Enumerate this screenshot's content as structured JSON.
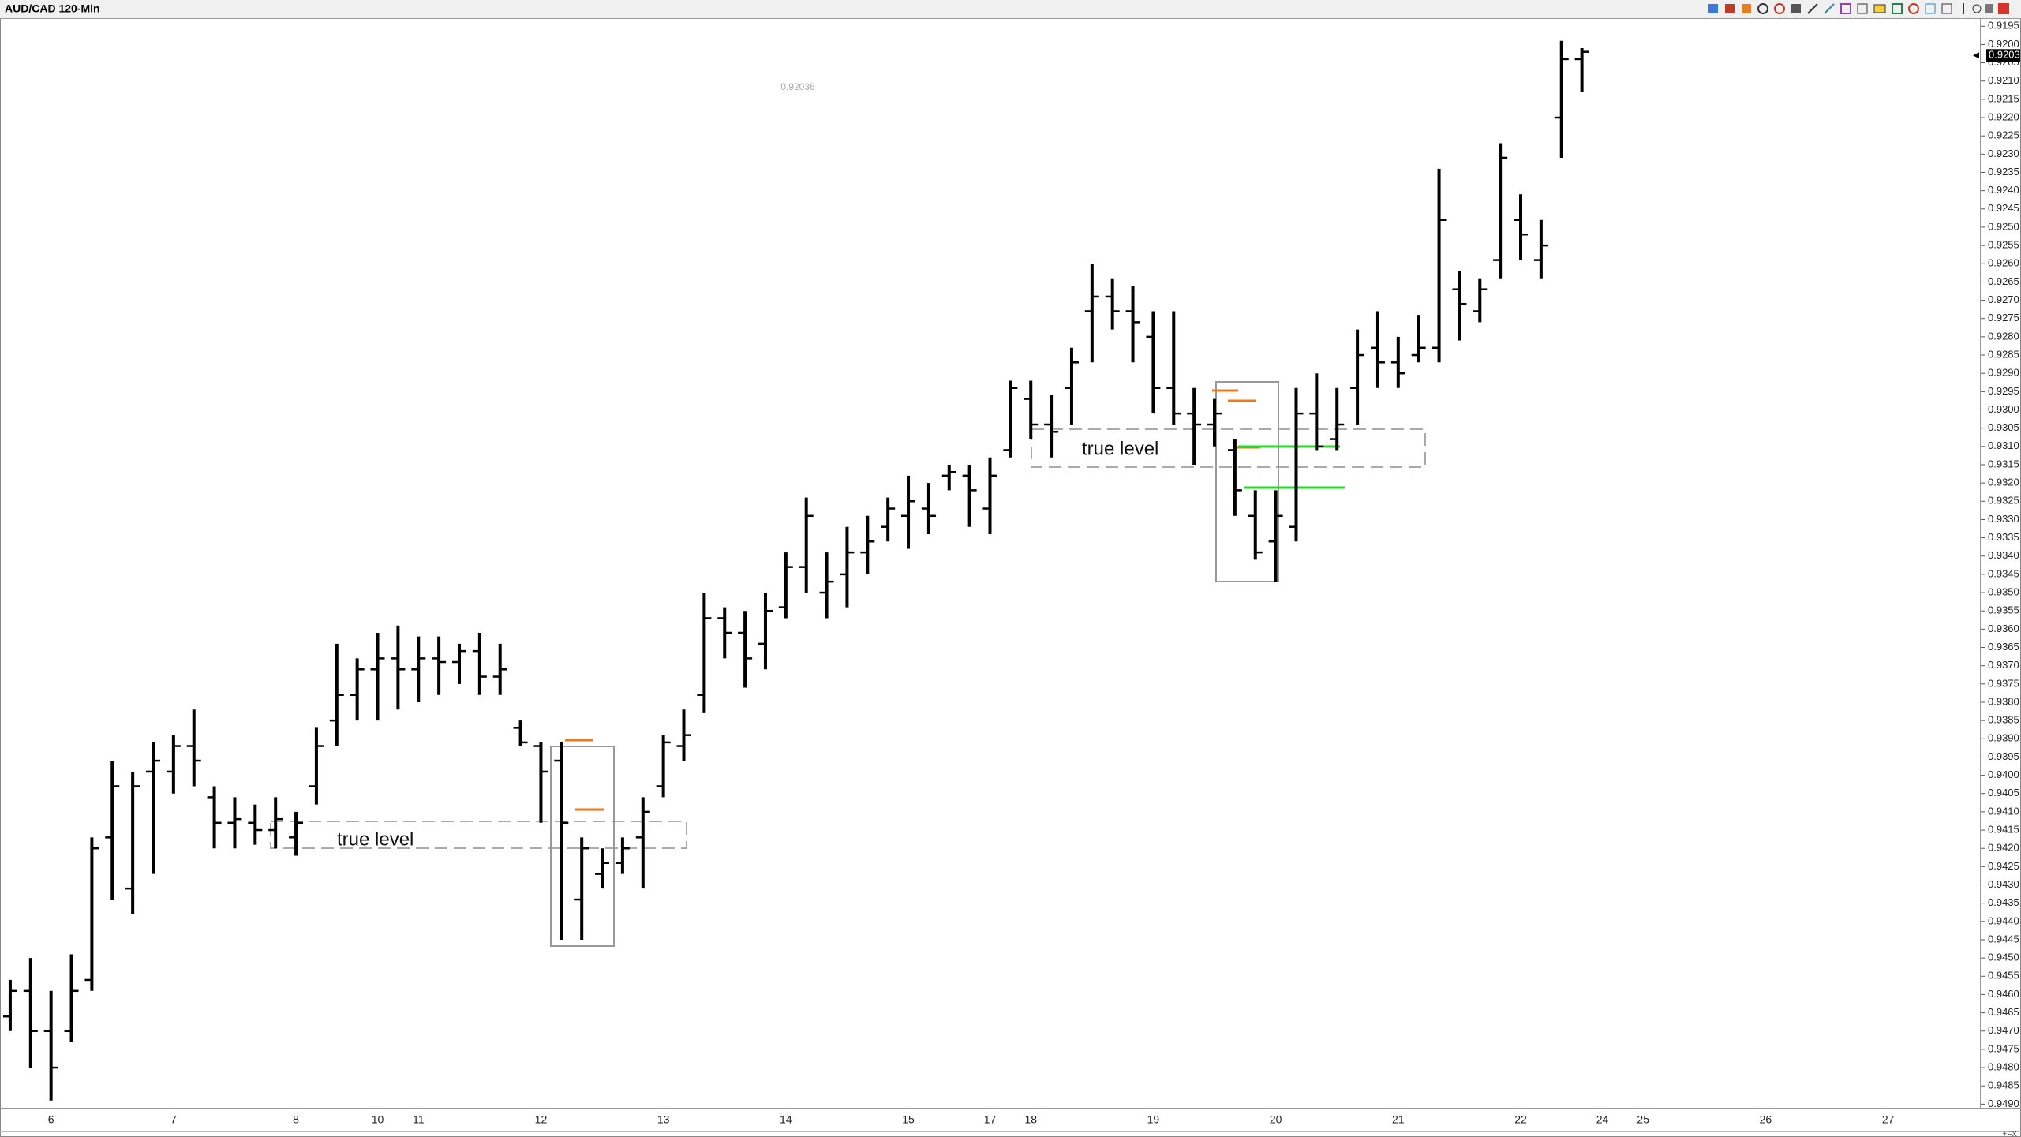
{
  "chart_data": {
    "type": "ohlc",
    "title": "AUD/CAD 120-Min",
    "inverted": true,
    "grid": false,
    "color": "#000000",
    "ylim": [
      0.9193,
      0.9491
    ],
    "yticks": [
      0.9195,
      {
        "value": 0.92,
        "label": "0.9200"
      },
      0.9205,
      {
        "value": 0.921,
        "label": "0.9210"
      },
      0.9215,
      {
        "value": 0.922,
        "label": "0.9220"
      },
      0.9225,
      {
        "value": 0.923,
        "label": "0.9230"
      },
      0.9235,
      {
        "value": 0.924,
        "label": "0.9240"
      },
      0.9245,
      {
        "value": 0.925,
        "label": "0.9250"
      },
      0.9255,
      {
        "value": 0.926,
        "label": "0.9260"
      },
      0.9265,
      {
        "value": 0.927,
        "label": "0.9270"
      },
      0.9275,
      {
        "value": 0.928,
        "label": "0.9280"
      },
      0.9285,
      {
        "value": 0.929,
        "label": "0.9290"
      },
      0.9295,
      {
        "value": 0.93,
        "label": "0.9300"
      },
      0.9305,
      {
        "value": 0.931,
        "label": "0.9310"
      },
      0.9315,
      {
        "value": 0.932,
        "label": "0.9320"
      },
      0.9325,
      {
        "value": 0.933,
        "label": "0.9330"
      },
      0.9335,
      {
        "value": 0.934,
        "label": "0.9340"
      },
      0.9345,
      {
        "value": 0.935,
        "label": "0.9350"
      },
      0.9355,
      {
        "value": 0.936,
        "label": "0.9360"
      },
      0.9365,
      {
        "value": 0.937,
        "label": "0.9370"
      },
      0.9375,
      {
        "value": 0.938,
        "label": "0.9380"
      },
      0.9385,
      {
        "value": 0.939,
        "label": "0.9390"
      },
      0.9395,
      {
        "value": 0.94,
        "label": "0.9400"
      },
      0.9405,
      {
        "value": 0.941,
        "label": "0.9410"
      },
      0.9415,
      {
        "value": 0.942,
        "label": "0.9420"
      },
      0.9425,
      {
        "value": 0.943,
        "label": "0.9430"
      },
      0.9435,
      {
        "value": 0.944,
        "label": "0.9440"
      },
      0.9445,
      {
        "value": 0.945,
        "label": "0.9450"
      },
      0.9455,
      {
        "value": 0.946,
        "label": "0.9460"
      },
      0.9465,
      {
        "value": 0.947,
        "label": "0.9470"
      },
      0.9475,
      {
        "value": 0.948,
        "label": "0.9480"
      },
      0.9485,
      {
        "value": 0.949,
        "label": "0.9490"
      }
    ],
    "categories": [
      null,
      null,
      "6",
      null,
      null,
      null,
      null,
      null,
      "7",
      null,
      null,
      null,
      null,
      null,
      "8",
      null,
      null,
      null,
      "10",
      null,
      "11",
      null,
      null,
      null,
      null,
      null,
      "12",
      null,
      null,
      null,
      null,
      null,
      "13",
      null,
      null,
      null,
      null,
      null,
      "14",
      null,
      null,
      null,
      null,
      null,
      "15",
      null,
      null,
      null,
      "17",
      null,
      "18",
      null,
      null,
      null,
      null,
      null,
      "19",
      null,
      null,
      null,
      null,
      null,
      "20",
      null,
      null,
      null,
      null,
      null,
      "21",
      null,
      null,
      null,
      null,
      null,
      "22",
      null,
      null,
      null,
      "24",
      null,
      "25",
      null,
      null,
      null,
      null,
      null,
      "26",
      null,
      null,
      null,
      null,
      null,
      "27",
      null,
      null,
      null,
      null
    ],
    "ohlc": [
      [
        0.9466,
        0.947,
        0.9456,
        0.9459
      ],
      [
        0.9459,
        0.948,
        0.945,
        0.947
      ],
      [
        0.947,
        0.9489,
        0.9459,
        0.948
      ],
      [
        0.947,
        0.9473,
        0.9449,
        0.9459
      ],
      [
        0.9456,
        0.9459,
        0.9417,
        0.942
      ],
      [
        0.9417,
        0.9434,
        0.9396,
        0.9403
      ],
      [
        0.9431,
        0.9438,
        0.9399,
        0.9403
      ],
      [
        0.9399,
        0.9427,
        0.9391,
        0.9396
      ],
      [
        0.9399,
        0.9405,
        0.9389,
        0.9392
      ],
      [
        0.9392,
        0.9403,
        0.9382,
        0.9396
      ],
      [
        0.9406,
        0.942,
        0.9403,
        0.9413
      ],
      [
        0.9413,
        0.942,
        0.9406,
        0.9412
      ],
      [
        0.9413,
        0.9419,
        0.9408,
        0.9415
      ],
      [
        0.9415,
        0.942,
        0.9406,
        0.9412
      ],
      [
        0.9417,
        0.9422,
        0.941,
        0.9413
      ],
      [
        0.9403,
        0.9408,
        0.9387,
        0.9392
      ],
      [
        0.9385,
        0.9392,
        0.9364,
        0.9378
      ],
      [
        0.9378,
        0.9385,
        0.9368,
        0.9371
      ],
      [
        0.9371,
        0.9385,
        0.9361,
        0.9368
      ],
      [
        0.9368,
        0.9382,
        0.9359,
        0.9371
      ],
      [
        0.9371,
        0.938,
        0.9362,
        0.9368
      ],
      [
        0.9368,
        0.9378,
        0.9362,
        0.9369
      ],
      [
        0.9369,
        0.9375,
        0.9364,
        0.9366
      ],
      [
        0.9366,
        0.9378,
        0.9361,
        0.9373
      ],
      [
        0.9373,
        0.9378,
        0.9364,
        0.9371
      ],
      [
        0.9387,
        0.9392,
        0.9385,
        0.9391
      ],
      [
        0.9392,
        0.9413,
        0.9391,
        0.9399
      ],
      [
        0.9396,
        0.9445,
        0.9391,
        0.9413
      ],
      [
        0.9434,
        0.9445,
        0.9417,
        0.942
      ],
      [
        0.9427,
        0.9431,
        0.942,
        0.9424
      ],
      [
        0.9424,
        0.9427,
        0.9417,
        0.942
      ],
      [
        0.9417,
        0.9431,
        0.9406,
        0.941
      ],
      [
        0.9403,
        0.9406,
        0.9389,
        0.9391
      ],
      [
        0.9392,
        0.9396,
        0.9382,
        0.9389
      ],
      [
        0.9378,
        0.9383,
        0.935,
        0.9357
      ],
      [
        0.9357,
        0.9368,
        0.9354,
        0.9361
      ],
      [
        0.9361,
        0.9376,
        0.9355,
        0.9368
      ],
      [
        0.9364,
        0.9371,
        0.935,
        0.9355
      ],
      [
        0.9354,
        0.9357,
        0.9339,
        0.9343
      ],
      [
        0.9343,
        0.935,
        0.9324,
        0.9329
      ],
      [
        0.935,
        0.9357,
        0.9339,
        0.9347
      ],
      [
        0.9345,
        0.9354,
        0.9332,
        0.9339
      ],
      [
        0.9339,
        0.9345,
        0.9329,
        0.9336
      ],
      [
        0.9332,
        0.9336,
        0.9324,
        0.9327
      ],
      [
        0.9329,
        0.9338,
        0.9318,
        0.9325
      ],
      [
        0.9327,
        0.9334,
        0.932,
        0.9329
      ],
      [
        0.9318,
        0.9322,
        0.9315,
        0.9317
      ],
      [
        0.9318,
        0.9332,
        0.9315,
        0.9322
      ],
      [
        0.9327,
        0.9334,
        0.9313,
        0.9318
      ],
      [
        0.9311,
        0.9313,
        0.9292,
        0.9294
      ],
      [
        0.9297,
        0.9308,
        0.9292,
        0.9304
      ],
      [
        0.9304,
        0.9313,
        0.9296,
        0.9306
      ],
      [
        0.9294,
        0.9304,
        0.9283,
        0.9287
      ],
      [
        0.9273,
        0.9287,
        0.926,
        0.9269
      ],
      [
        0.9269,
        0.9278,
        0.9264,
        0.9273
      ],
      [
        0.9273,
        0.9287,
        0.9266,
        0.9276
      ],
      [
        0.928,
        0.9301,
        0.9273,
        0.9294
      ],
      [
        0.9294,
        0.9304,
        0.9273,
        0.9301
      ],
      [
        0.9301,
        0.9315,
        0.9294,
        0.9304
      ],
      [
        0.9304,
        0.931,
        0.9297,
        0.9301
      ],
      [
        0.9311,
        0.9329,
        0.9308,
        0.9322
      ],
      [
        0.9329,
        0.9341,
        0.9322,
        0.9339
      ],
      [
        0.9336,
        0.9347,
        0.9322,
        0.9329
      ],
      [
        0.9332,
        0.9336,
        0.9294,
        0.9301
      ],
      [
        0.9301,
        0.9311,
        0.929,
        0.931
      ],
      [
        0.9308,
        0.9311,
        0.9294,
        0.9304
      ],
      [
        0.9294,
        0.9304,
        0.9278,
        0.9285
      ],
      [
        0.9283,
        0.9294,
        0.9273,
        0.9287
      ],
      [
        0.9287,
        0.9294,
        0.928,
        0.929
      ],
      [
        0.9285,
        0.9287,
        0.9274,
        0.9283
      ],
      [
        0.9283,
        0.9287,
        0.9234,
        0.9248
      ],
      [
        0.9267,
        0.9281,
        0.9262,
        0.9271
      ],
      [
        0.9273,
        0.9276,
        0.9264,
        0.9267
      ],
      [
        0.9259,
        0.9264,
        0.9227,
        0.9231
      ],
      [
        0.9248,
        0.9259,
        0.9241,
        0.9252
      ],
      [
        0.9259,
        0.9264,
        0.9248,
        0.9255
      ],
      [
        0.922,
        0.9231,
        0.9199,
        0.9204
      ],
      [
        0.9204,
        0.9213,
        0.9201,
        0.9202
      ],
      null,
      null,
      null,
      null,
      null,
      null,
      null,
      null,
      null,
      null,
      null,
      null,
      null,
      null,
      null,
      null,
      null,
      null,
      null
    ],
    "last_price": 0.9203,
    "cursor_price": 0.92036,
    "annotations": [
      "true level",
      "true level"
    ],
    "footer": "+FX"
  }
}
